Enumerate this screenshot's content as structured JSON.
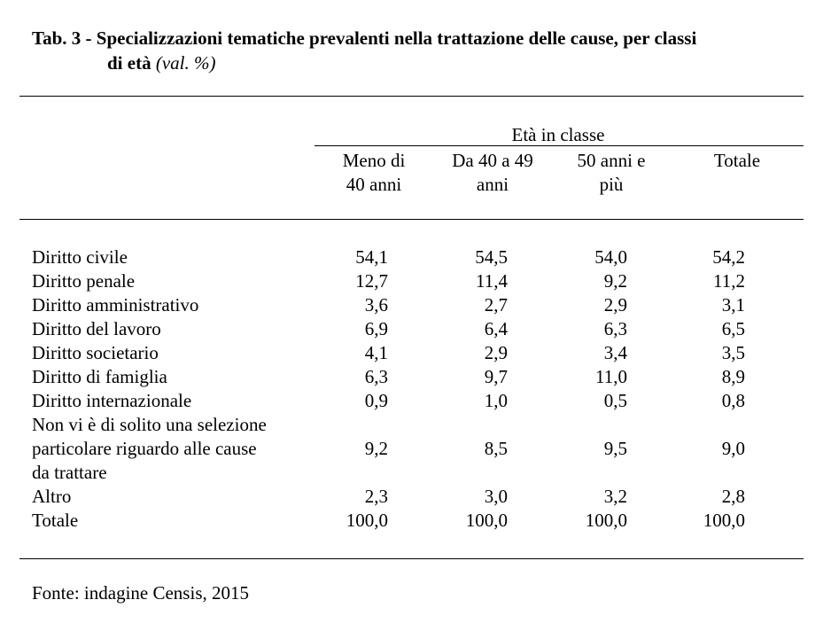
{
  "title": {
    "prefix": "Tab. 3 - ",
    "line1": "Specializzazioni tematiche prevalenti nella trattazione delle cause, per classi",
    "line2": "di età",
    "unit": "(val. %)"
  },
  "table": {
    "group_header": "Età in classe",
    "columns": [
      {
        "line1": "Meno di",
        "line2": "40 anni"
      },
      {
        "line1": "Da 40 a 49",
        "line2": "anni"
      },
      {
        "line1": "50 anni e",
        "line2": "più"
      },
      {
        "line1": "Totale",
        "line2": ""
      }
    ],
    "rows": [
      {
        "label": [
          "Diritto civile"
        ],
        "values": [
          "54,1",
          "54,5",
          "54,0",
          "54,2"
        ]
      },
      {
        "label": [
          "Diritto penale"
        ],
        "values": [
          "12,7",
          "11,4",
          "9,2",
          "11,2"
        ]
      },
      {
        "label": [
          "Diritto amministrativo"
        ],
        "values": [
          "3,6",
          "2,7",
          "2,9",
          "3,1"
        ]
      },
      {
        "label": [
          "Diritto del lavoro"
        ],
        "values": [
          "6,9",
          "6,4",
          "6,3",
          "6,5"
        ]
      },
      {
        "label": [
          "Diritto societario"
        ],
        "values": [
          "4,1",
          "2,9",
          "3,4",
          "3,5"
        ]
      },
      {
        "label": [
          "Diritto di famiglia"
        ],
        "values": [
          "6,3",
          "9,7",
          "11,0",
          "8,9"
        ]
      },
      {
        "label": [
          "Diritto internazionale"
        ],
        "values": [
          "0,9",
          "1,0",
          "0,5",
          "0,8"
        ]
      },
      {
        "label": [
          "Non vi è di solito una selezione",
          "particolare riguardo alle cause",
          "da trattare"
        ],
        "values": [
          "9,2",
          "8,5",
          "9,5",
          "9,0"
        ]
      },
      {
        "label": [
          "Altro"
        ],
        "values": [
          "2,3",
          "3,0",
          "3,2",
          "2,8"
        ]
      },
      {
        "label": [
          "Totale"
        ],
        "values": [
          "100,0",
          "100,0",
          "100,0",
          "100,0"
        ]
      }
    ]
  },
  "source": "Fonte: indagine Censis, 2015"
}
